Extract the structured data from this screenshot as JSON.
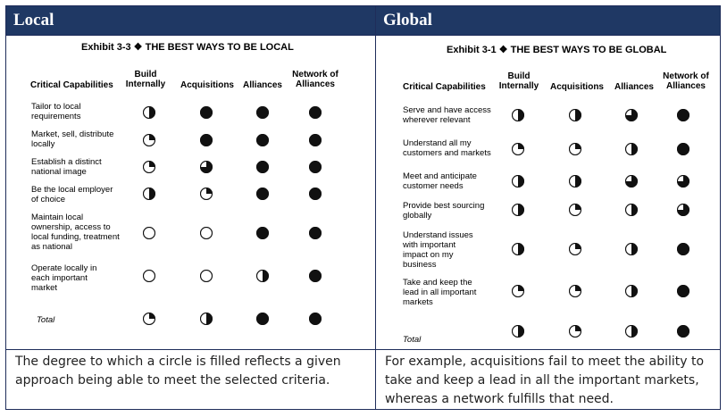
{
  "left": {
    "header": "Local",
    "exhibit_title": "Exhibit 3-3  ❖  THE BEST WAYS TO BE LOCAL",
    "criteria_header": "Critical Capabilities",
    "columns": [
      "Build Internally",
      "Acquisitions",
      "Alliances",
      "Network of Alliances"
    ],
    "rows": [
      {
        "label": "Tailor to local requirements",
        "levels": [
          0.5,
          1,
          1,
          1
        ]
      },
      {
        "label": "Market, sell, distribute locally",
        "levels": [
          0.25,
          1,
          1,
          1
        ]
      },
      {
        "label": "Establish a distinct national image",
        "levels": [
          0.25,
          0.75,
          1,
          1
        ]
      },
      {
        "label": "Be the local employer of choice",
        "levels": [
          0.5,
          0.25,
          1,
          1
        ]
      },
      {
        "label": "Maintain local ownership, access to local funding, treatment as national",
        "levels": [
          0,
          0,
          1,
          1
        ]
      },
      {
        "label": "Operate locally in each important market",
        "levels": [
          0,
          0,
          0.5,
          1
        ]
      }
    ],
    "total_label": "Total",
    "total_levels": [
      0.25,
      0.5,
      1,
      1
    ],
    "caption": "The degree to which a circle is filled reflects a given approach being able to meet the selected criteria."
  },
  "right": {
    "header": "Global",
    "exhibit_title": "Exhibit 3-1  ❖  THE BEST WAYS TO BE GLOBAL",
    "criteria_header": "Critical Capabilities",
    "columns": [
      "Build Internally",
      "Acquisitions",
      "Alliances",
      "Network of Alliances"
    ],
    "rows": [
      {
        "label": "Serve and have access wherever relevant",
        "levels": [
          0.5,
          0.5,
          0.75,
          1
        ]
      },
      {
        "label": "Understand all my customers and markets",
        "levels": [
          0.25,
          0.25,
          0.5,
          1
        ]
      },
      {
        "label": "Meet and anticipate customer needs",
        "levels": [
          0.5,
          0.5,
          0.75,
          0.75
        ]
      },
      {
        "label": "Provide best sourcing globally",
        "levels": [
          0.5,
          0.25,
          0.5,
          0.75
        ]
      },
      {
        "label": "Understand issues with important impact on my business",
        "levels": [
          0.5,
          0.25,
          0.5,
          1
        ]
      },
      {
        "label": "Take and keep the lead in all important markets",
        "levels": [
          0.25,
          0.25,
          0.5,
          1
        ]
      }
    ],
    "total_label": "Total",
    "total_levels": [
      0.5,
      0.25,
      0.5,
      1
    ],
    "caption": "For example, acquisitions fail to meet the ability to take and keep a lead in all the important markets, whereas a network fulfills that need."
  }
}
